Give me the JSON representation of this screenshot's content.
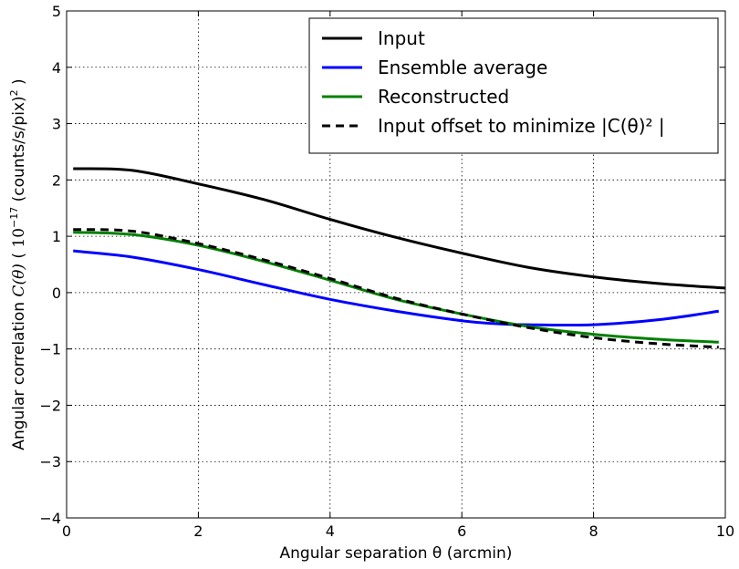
{
  "chart_data": {
    "type": "line",
    "xlabel": "Angular separation θ (arcmin)",
    "ylabel": {
      "prefix": "Angular correlation ",
      "symbol": "C(θ)",
      "unit_open": " ( ",
      "factor_base": "10",
      "factor_exp": "−17",
      "unit_rest": " (counts/s/pix)",
      "unit_exp": "2",
      "unit_close": " )"
    },
    "xlim": [
      0,
      10
    ],
    "ylim": [
      -4,
      5
    ],
    "xticks": [
      0,
      2,
      4,
      6,
      8,
      10
    ],
    "yticks": [
      -4,
      -3,
      -2,
      -1,
      0,
      1,
      2,
      3,
      4,
      5
    ],
    "grid": true,
    "legend_position": "top-right",
    "series": [
      {
        "name": "Input",
        "color": "#000000",
        "dash": "solid",
        "x": [
          0.1,
          1.0,
          2.0,
          3.0,
          4.0,
          5.0,
          6.0,
          7.0,
          8.0,
          9.0,
          10.0
        ],
        "y": [
          2.2,
          2.17,
          1.93,
          1.65,
          1.3,
          0.98,
          0.7,
          0.45,
          0.28,
          0.16,
          0.08
        ]
      },
      {
        "name": "Ensemble average",
        "color": "#0000ff",
        "dash": "solid",
        "x": [
          0.1,
          1.0,
          2.0,
          3.0,
          4.0,
          5.0,
          6.0,
          6.5,
          7.0,
          8.0,
          9.0,
          9.9
        ],
        "y": [
          0.74,
          0.63,
          0.41,
          0.14,
          -0.12,
          -0.33,
          -0.5,
          -0.55,
          -0.57,
          -0.57,
          -0.48,
          -0.33
        ]
      },
      {
        "name": "Reconstructed",
        "color": "#008000",
        "dash": "solid",
        "x": [
          0.1,
          1.0,
          2.0,
          3.0,
          4.0,
          5.0,
          6.0,
          7.0,
          8.0,
          9.0,
          9.9
        ],
        "y": [
          1.07,
          1.03,
          0.84,
          0.55,
          0.22,
          -0.12,
          -0.38,
          -0.6,
          -0.74,
          -0.83,
          -0.88
        ]
      },
      {
        "name": "Input offset to minimize |C(θ)² |",
        "color": "#000000",
        "dash": "dashed",
        "x": [
          0.1,
          1.0,
          2.0,
          3.0,
          4.0,
          5.0,
          6.0,
          7.0,
          8.0,
          9.0,
          9.9
        ],
        "y": [
          1.12,
          1.09,
          0.87,
          0.58,
          0.25,
          -0.1,
          -0.38,
          -0.62,
          -0.8,
          -0.91,
          -0.97
        ]
      }
    ]
  }
}
